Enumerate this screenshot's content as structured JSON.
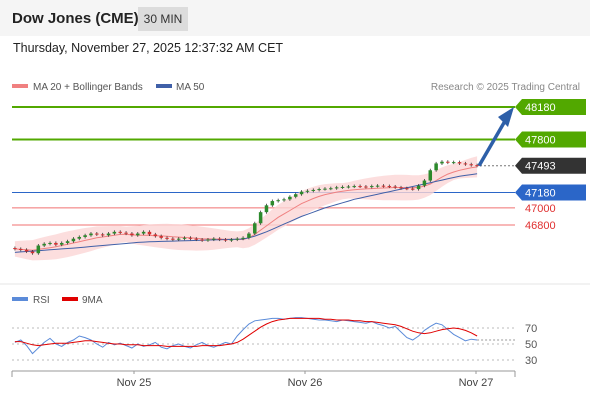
{
  "header": {
    "instrument": "Dow Jones (CME)",
    "timeframe": "30 MIN"
  },
  "timestamp": "Thursday, November 27, 2025 12:37:32 AM CET",
  "legend": {
    "ma20": "MA 20 + Bollinger Bands",
    "ma50": "MA 50",
    "copyright": "Research © 2025 Trading Central"
  },
  "rsi_legend": {
    "rsi": "RSI",
    "ma": "9MA"
  },
  "colors": {
    "resistance": "#52a800",
    "pivot": "#2b66c8",
    "support": "#f07070",
    "price": "#333333",
    "ma20": "#f08080",
    "ma50": "#4060a8",
    "band": "#fbd6d6",
    "candle_up": "#2c8a2c",
    "candle_down": "#d63030",
    "rsi": "#5b8bd9",
    "rsi_ma": "#e00000",
    "arrow": "#2d5fa8"
  },
  "chart_data": [
    {
      "type": "line",
      "title": "Dow Jones (CME) 30 MIN",
      "x_ticks": [
        "Nov 25",
        "Nov 26",
        "Nov 27"
      ],
      "price_levels": [
        {
          "value": 48180,
          "label": "48180",
          "kind": "resistance"
        },
        {
          "value": 47800,
          "label": "47800",
          "kind": "resistance"
        },
        {
          "value": 47493,
          "label": "47493",
          "kind": "last"
        },
        {
          "value": 47180,
          "label": "47180",
          "kind": "pivot"
        },
        {
          "value": 47000,
          "label": "47000",
          "kind": "support"
        },
        {
          "value": 46800,
          "label": "46800",
          "kind": "support"
        }
      ],
      "series_close": [
        46520,
        46510,
        46490,
        46470,
        46560,
        46580,
        46590,
        46570,
        46590,
        46610,
        46640,
        46660,
        46680,
        46700,
        46690,
        46680,
        46700,
        46720,
        46710,
        46700,
        46680,
        46700,
        46720,
        46690,
        46670,
        46650,
        46640,
        46630,
        46640,
        46650,
        46640,
        46630,
        46620,
        46630,
        46640,
        46630,
        46620,
        46630,
        46640,
        46650,
        46700,
        46820,
        46950,
        47030,
        47080,
        47090,
        47100,
        47130,
        47160,
        47190,
        47200,
        47210,
        47220,
        47225,
        47230,
        47240,
        47245,
        47250,
        47255,
        47250,
        47245,
        47255,
        47260,
        47255,
        47250,
        47240,
        47230,
        47225,
        47220,
        47260,
        47320,
        47440,
        47520,
        47540,
        47530,
        47535,
        47520,
        47510,
        47500,
        47493
      ],
      "series_ma20": [
        46520,
        46515,
        46510,
        46505,
        46515,
        46525,
        46535,
        46545,
        46560,
        46575,
        46590,
        46605,
        46620,
        46635,
        46650,
        46660,
        46670,
        46680,
        46690,
        46690,
        46685,
        46680,
        46680,
        46678,
        46675,
        46672,
        46668,
        46662,
        46658,
        46654,
        46650,
        46645,
        46640,
        46638,
        46636,
        46635,
        46634,
        46633,
        46632,
        46630,
        46650,
        46690,
        46740,
        46790,
        46840,
        46890,
        46930,
        46970,
        47010,
        47050,
        47080,
        47110,
        47135,
        47155,
        47170,
        47185,
        47195,
        47205,
        47212,
        47218,
        47222,
        47226,
        47230,
        47233,
        47236,
        47238,
        47238,
        47237,
        47236,
        47240,
        47255,
        47280,
        47320,
        47360,
        47395,
        47420,
        47440,
        47455,
        47470,
        47480
      ],
      "series_ma50": [
        46480,
        46485,
        46490,
        46495,
        46500,
        46505,
        46510,
        46515,
        46520,
        46525,
        46530,
        46536,
        46542,
        46548,
        46554,
        46560,
        46566,
        46572,
        46578,
        46584,
        46590,
        46596,
        46600,
        46603,
        46606,
        46608,
        46610,
        46612,
        46614,
        46616,
        46618,
        46620,
        46622,
        46624,
        46626,
        46628,
        46630,
        46632,
        46634,
        46636,
        46650,
        46670,
        46695,
        46720,
        46750,
        46780,
        46810,
        46840,
        46870,
        46900,
        46925,
        46950,
        46975,
        47000,
        47020,
        47040,
        47060,
        47080,
        47100,
        47115,
        47130,
        47145,
        47160,
        47175,
        47190,
        47205,
        47220,
        47235,
        47250,
        47265,
        47280,
        47295,
        47310,
        47325,
        47340,
        47355,
        47370,
        47380,
        47390,
        47400
      ],
      "rsi_levels": [
        "70",
        "50",
        "30"
      ],
      "series_rsi": [
        52,
        55,
        48,
        38,
        45,
        52,
        57,
        50,
        47,
        52,
        55,
        60,
        58,
        55,
        50,
        46,
        52,
        49,
        51,
        48,
        45,
        50,
        47,
        49,
        52,
        46,
        44,
        48,
        50,
        47,
        45,
        49,
        52,
        48,
        46,
        49,
        52,
        50,
        60,
        68,
        75,
        79,
        80,
        81,
        82,
        82,
        81,
        82,
        83,
        83,
        82,
        81,
        80,
        80,
        79,
        78,
        80,
        79,
        78,
        77,
        76,
        78,
        75,
        73,
        70,
        72,
        65,
        58,
        55,
        60,
        67,
        72,
        76,
        74,
        68,
        62,
        58,
        54,
        56,
        55
      ],
      "series_rsi_ma": [
        53,
        53,
        51,
        49,
        48,
        49,
        50,
        51,
        51,
        51,
        52,
        53,
        54,
        54,
        53,
        52,
        51,
        50,
        50,
        49,
        49,
        49,
        48,
        48,
        48,
        48,
        47,
        47,
        47,
        47,
        47,
        47,
        48,
        48,
        48,
        48,
        49,
        50,
        52,
        56,
        61,
        66,
        71,
        75,
        78,
        80,
        81,
        82,
        82,
        82,
        82,
        82,
        82,
        81,
        81,
        80,
        80,
        80,
        79,
        79,
        78,
        78,
        77,
        76,
        75,
        74,
        72,
        69,
        66,
        64,
        63,
        64,
        66,
        68,
        69,
        70,
        69,
        67,
        64,
        60
      ],
      "ylim": [
        46400,
        48300
      ]
    }
  ]
}
